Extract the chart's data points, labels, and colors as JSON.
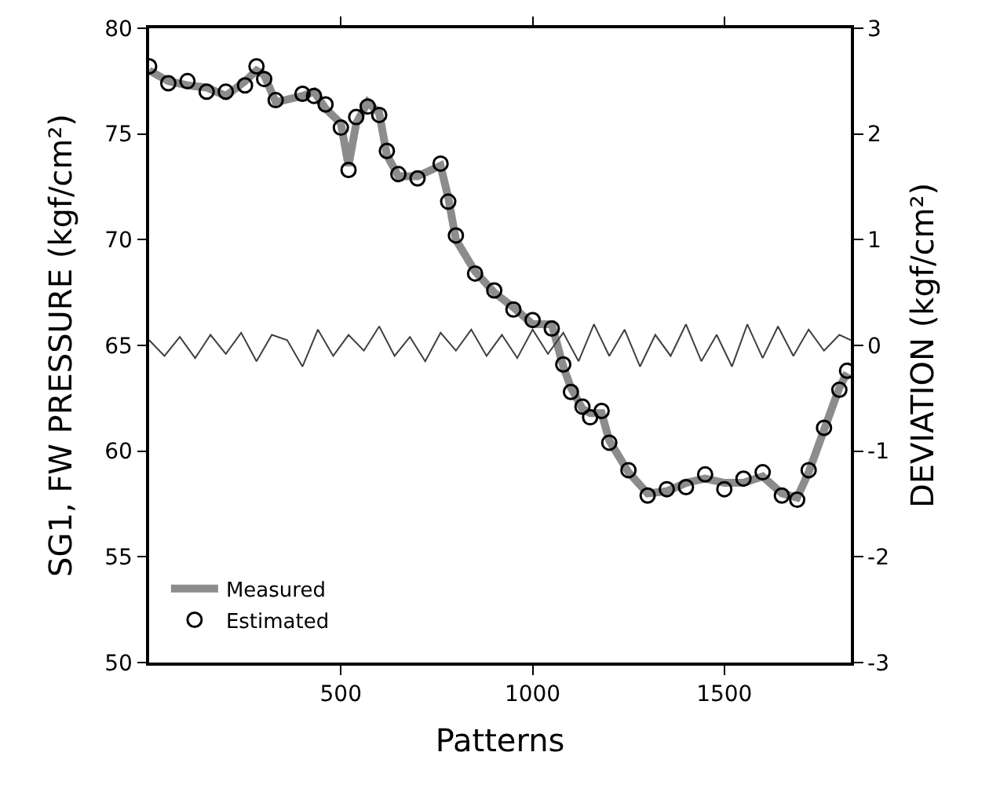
{
  "chart_data": {
    "type": "line",
    "xlabel": "Patterns",
    "ylabel": "SG1, FW PRESSURE (kgf/cm²)",
    "y2label": "DEVIATION (kgf/cm²)",
    "xlim": [
      0,
      1830
    ],
    "xticks": [
      500,
      1000,
      1500
    ],
    "ylim": [
      50,
      80
    ],
    "yticks": [
      50,
      55,
      60,
      65,
      70,
      75,
      80
    ],
    "y2lim": [
      -3,
      3
    ],
    "y2ticks": [
      -3,
      -2,
      -1,
      0,
      1,
      2,
      3
    ],
    "legend": "bottom left",
    "x": [
      0,
      50,
      100,
      150,
      200,
      250,
      280,
      300,
      330,
      400,
      430,
      460,
      500,
      520,
      540,
      570,
      600,
      620,
      650,
      700,
      760,
      780,
      800,
      850,
      900,
      950,
      1000,
      1050,
      1080,
      1100,
      1130,
      1150,
      1180,
      1200,
      1250,
      1300,
      1350,
      1400,
      1450,
      1500,
      1550,
      1600,
      1650,
      1690,
      1720,
      1760,
      1800,
      1820
    ],
    "series": [
      {
        "name": "Measured",
        "color": "#8c8c8c",
        "marker": "none",
        "line_style": "solid",
        "values": [
          78,
          77.5,
          77.3,
          77.2,
          76.8,
          77.5,
          78,
          77.8,
          76.5,
          76.8,
          77,
          76.2,
          75.5,
          73.5,
          75.5,
          76.5,
          76,
          74,
          73,
          73,
          73.5,
          72,
          70,
          68.5,
          67.5,
          66.8,
          66,
          66,
          64,
          63,
          62,
          61.8,
          61.8,
          60.5,
          59,
          58,
          58.1,
          58.5,
          58.7,
          58.5,
          58.5,
          58.8,
          58,
          57.8,
          59,
          61,
          63,
          63.7
        ]
      },
      {
        "name": "Estimated",
        "color": "#000000",
        "type": "scatter",
        "marker": "circle",
        "values": [
          78.2,
          77.4,
          77.5,
          77,
          77,
          77.3,
          78.2,
          77.6,
          76.6,
          76.9,
          76.8,
          76.4,
          75.3,
          73.3,
          75.8,
          76.3,
          75.9,
          74.2,
          73.1,
          72.9,
          73.6,
          71.8,
          70.2,
          68.4,
          67.6,
          66.7,
          66.2,
          65.8,
          64.1,
          62.8,
          62.1,
          61.6,
          61.9,
          60.4,
          59.1,
          57.9,
          58.2,
          58.3,
          58.9,
          58.2,
          58.7,
          59,
          57.9,
          57.7,
          59.1,
          61.1,
          62.9,
          63.8
        ]
      },
      {
        "color": "#404040",
        "axis": "y2",
        "marker": "none",
        "line_style": "solid",
        "x": [
          0,
          40,
          80,
          120,
          160,
          200,
          240,
          280,
          320,
          360,
          400,
          440,
          480,
          520,
          560,
          600,
          640,
          680,
          720,
          760,
          800,
          840,
          880,
          920,
          960,
          1000,
          1040,
          1080,
          1120,
          1160,
          1200,
          1240,
          1280,
          1320,
          1360,
          1400,
          1440,
          1480,
          1520,
          1560,
          1600,
          1640,
          1680,
          1720,
          1760,
          1800,
          1830
        ],
        "values": [
          0.05,
          -0.1,
          0.08,
          -0.12,
          0.1,
          -0.08,
          0.12,
          -0.15,
          0.1,
          0.05,
          -0.2,
          0.15,
          -0.1,
          0.1,
          -0.05,
          0.18,
          -0.1,
          0.08,
          -0.15,
          0.12,
          -0.05,
          0.15,
          -0.1,
          0.1,
          -0.12,
          0.15,
          -0.08,
          0.12,
          -0.15,
          0.2,
          -0.1,
          0.15,
          -0.2,
          0.1,
          -0.1,
          0.2,
          -0.15,
          0.1,
          -0.2,
          0.2,
          -0.12,
          0.18,
          -0.1,
          0.15,
          -0.05,
          0.1,
          0.05
        ]
      }
    ]
  }
}
